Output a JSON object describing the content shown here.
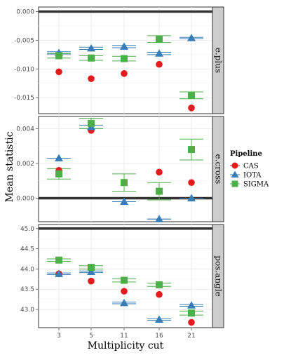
{
  "chart_data": {
    "type": "scatter",
    "xlabel": "Multiplicity cut",
    "ylabel": "Mean statistic",
    "categories": [
      "3",
      "5",
      "11",
      "16",
      "21"
    ],
    "grid": true,
    "legend": {
      "title": "Pipeline",
      "placement": "right",
      "entries": [
        "CAS",
        "IOTA",
        "SIGMA"
      ]
    },
    "colors": {
      "CAS": "#e41a1c",
      "IOTA": "#377eb8",
      "SIGMA": "#4daf4a"
    },
    "markers": {
      "CAS": "circle",
      "IOTA": "triangle",
      "SIGMA": "square"
    },
    "facets": [
      {
        "label": "e.plus",
        "ylim": [
          -0.0178,
          0.0008
        ],
        "yticks": [
          0.0,
          -0.005,
          -0.01,
          -0.015
        ],
        "yticklabels": [
          "0.000",
          "-0.005",
          "-0.010",
          "-0.015"
        ],
        "reference_line": 0.0,
        "series": [
          {
            "name": "CAS",
            "values": [
              -0.0105,
              -0.0117,
              -0.0108,
              -0.0092,
              -0.0168
            ],
            "err": [
              null,
              null,
              null,
              null,
              null
            ]
          },
          {
            "name": "IOTA",
            "values": [
              -0.0072,
              -0.0064,
              -0.0061,
              -0.0073,
              -0.0046
            ],
            "err": [
              0.0002,
              0.0002,
              0.0002,
              0.0002,
              0.0001
            ]
          },
          {
            "name": "SIGMA",
            "values": [
              -0.0077,
              -0.0081,
              -0.0082,
              -0.0048,
              -0.0146
            ],
            "err": [
              0.0004,
              0.0004,
              0.0004,
              0.0006,
              0.0006
            ]
          }
        ]
      },
      {
        "label": "e.cross",
        "ylim": [
          -0.00135,
          0.0047
        ],
        "yticks": [
          0.004,
          0.002,
          0.0
        ],
        "yticklabels": [
          "0.004",
          "0.002",
          "0.000"
        ],
        "reference_line": 0.0,
        "series": [
          {
            "name": "CAS",
            "values": [
              0.0016,
              0.0039,
              0.0009,
              0.0015,
              0.0009
            ],
            "err": [
              null,
              null,
              null,
              null,
              null
            ]
          },
          {
            "name": "IOTA",
            "values": [
              0.0023,
              0.0041,
              -0.0002,
              -0.0012,
              0.0
            ],
            "err": [
              0.0,
              0.0001,
              0.0,
              0.0,
              0.0
            ]
          },
          {
            "name": "SIGMA",
            "values": [
              0.0014,
              0.0043,
              0.0009,
              0.0004,
              0.0028
            ],
            "err": [
              0.0003,
              0.0003,
              0.0005,
              0.0005,
              0.0006
            ]
          }
        ]
      },
      {
        "label": "pos.angle",
        "ylim": [
          42.55,
          45.1
        ],
        "yticks": [
          45.0,
          44.5,
          44.0,
          43.5,
          43.0
        ],
        "yticklabels": [
          "45.0",
          "44.5",
          "44.0",
          "43.5",
          "43.0"
        ],
        "reference_line": 45.0,
        "series": [
          {
            "name": "CAS",
            "values": [
              43.88,
              43.7,
              43.45,
              43.37,
              42.68
            ],
            "err": [
              null,
              null,
              null,
              null,
              null
            ]
          },
          {
            "name": "IOTA",
            "values": [
              43.88,
              43.93,
              43.16,
              42.75,
              43.1
            ],
            "err": [
              0.02,
              0.02,
              0.02,
              0.02,
              0.02
            ]
          },
          {
            "name": "SIGMA",
            "values": [
              44.22,
              44.04,
              43.72,
              43.61,
              42.91
            ],
            "err": [
              0.03,
              0.04,
              0.04,
              0.04,
              0.05
            ]
          }
        ]
      }
    ]
  }
}
